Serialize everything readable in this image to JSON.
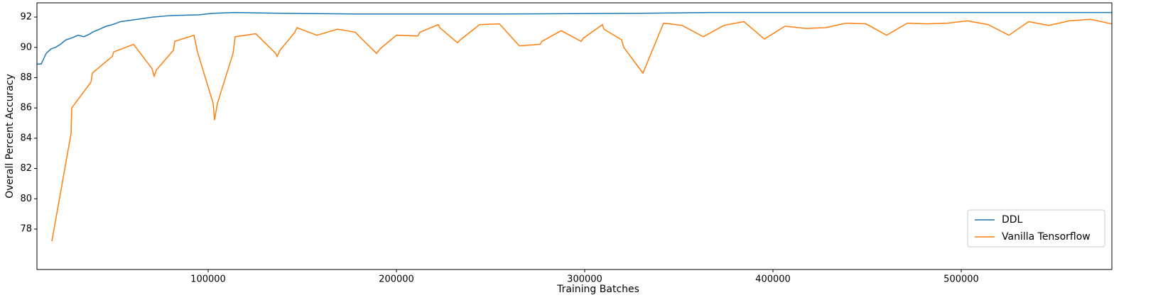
{
  "chart_data": {
    "type": "line",
    "x_label": "Training Batches",
    "y_label": "Overall Percent Accuracy",
    "xlim": [
      9057,
      580000
    ],
    "ylim": [
      75.33,
      92.94
    ],
    "xticks": [
      100000,
      200000,
      300000,
      400000,
      500000
    ],
    "yticks": [
      78,
      80,
      82,
      84,
      86,
      88,
      90,
      92
    ],
    "grid": false,
    "legend": "lower right",
    "series": [
      {
        "name": "DDL",
        "color": "#1f77b4",
        "x": [
          9057,
          11321,
          13962,
          16604,
          18868,
          21509,
          24528,
          27170,
          29057,
          30943,
          33962,
          37358,
          38491,
          42264,
          46038,
          49057,
          53585,
          59245,
          64906,
          70566,
          80000,
          95094,
          102642,
          113962,
          140377,
          178113,
          215849,
          253585,
          329057,
          366792,
          580000
        ],
        "values": [
          88.9,
          88.9,
          89.6,
          89.9,
          90.0,
          90.2,
          90.5,
          90.6,
          90.7,
          90.8,
          90.7,
          90.9,
          91.0,
          91.2,
          91.4,
          91.5,
          91.7,
          91.8,
          91.9,
          92.0,
          92.1,
          92.15,
          92.25,
          92.3,
          92.25,
          92.2,
          92.2,
          92.2,
          92.25,
          92.3,
          92.3
        ]
      },
      {
        "name": "Vanilla Tensorflow",
        "color": "#ff7f0e",
        "x": [
          16981,
          27170,
          27547,
          37736,
          38491,
          49057,
          49811,
          60377,
          70189,
          71321,
          72453,
          81509,
          82264,
          92453,
          94340,
          102642,
          103396,
          104906,
          113208,
          114340,
          125283,
          135849,
          136604,
          138113,
          146038,
          147170,
          157736,
          168679,
          178113,
          189434,
          191321,
          200000,
          211321,
          212453,
          222264,
          223019,
          232453,
          233962,
          244151,
          254717,
          265283,
          276226,
          277358,
          287547,
          298113,
          299245,
          309434,
          310189,
          319623,
          320755,
          330943,
          341887,
          351698,
          363019,
          373962,
          384528,
          395472,
          406415,
          417358,
          427925,
          438868,
          449434,
          460377,
          471321,
          481887,
          492830,
          503396,
          514340,
          525283,
          535849,
          546415,
          557358,
          568679,
          580000
        ],
        "values": [
          77.2,
          84.3,
          86.0,
          87.7,
          88.3,
          89.4,
          89.7,
          90.2,
          88.6,
          88.1,
          88.5,
          89.8,
          90.4,
          90.8,
          89.7,
          86.3,
          85.2,
          86.3,
          89.6,
          90.7,
          90.9,
          89.6,
          89.4,
          89.8,
          91.0,
          91.3,
          90.8,
          91.2,
          91.0,
          89.6,
          89.9,
          90.8,
          90.75,
          91.0,
          91.5,
          91.3,
          90.3,
          90.5,
          91.5,
          91.55,
          90.1,
          90.2,
          90.4,
          91.1,
          90.4,
          90.6,
          91.5,
          91.2,
          90.5,
          90.0,
          88.3,
          91.6,
          91.45,
          90.7,
          91.45,
          91.7,
          90.55,
          91.4,
          91.25,
          91.3,
          91.6,
          91.55,
          90.8,
          91.6,
          91.55,
          91.6,
          91.75,
          91.5,
          90.8,
          91.7,
          91.45,
          91.75,
          91.85,
          91.55
        ]
      }
    ]
  }
}
